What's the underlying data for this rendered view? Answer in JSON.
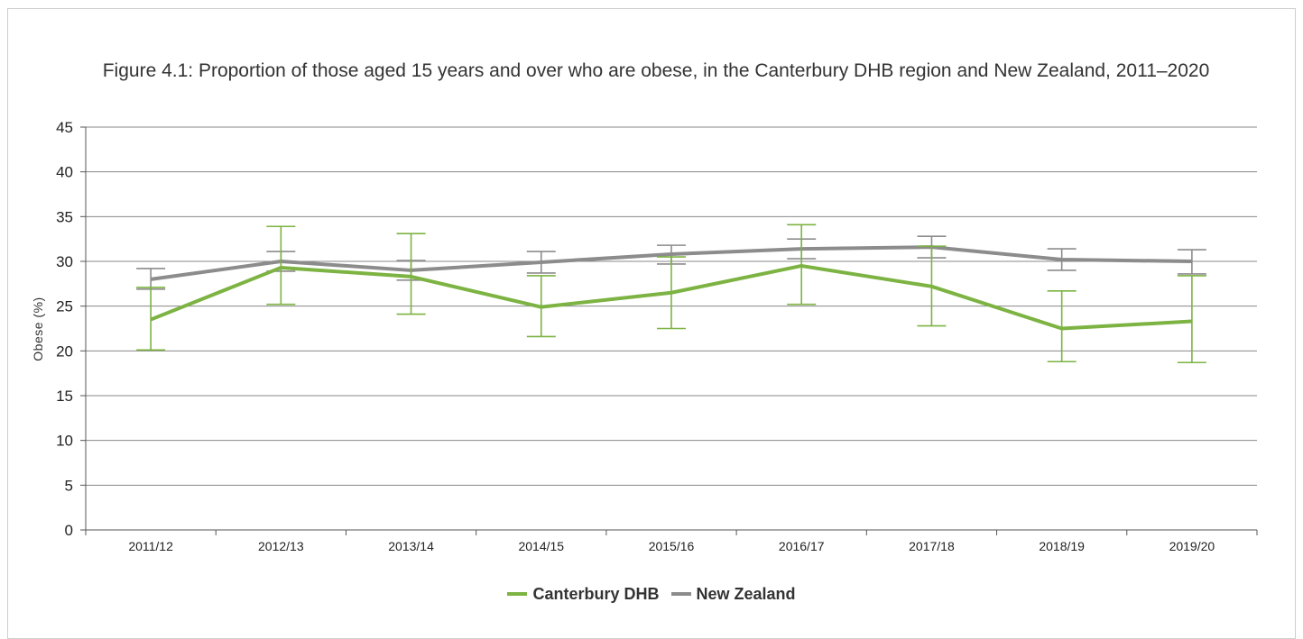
{
  "chart_data": {
    "type": "line",
    "title": "Figure 4.1: Proportion of those aged 15 years and over who are obese, in the Canterbury DHB region and New Zealand, 2011–2020",
    "ylabel": "Obese (%)",
    "xlabel": "",
    "ylim": [
      0,
      45
    ],
    "yticks": [
      0,
      5,
      10,
      15,
      20,
      25,
      30,
      35,
      40,
      45
    ],
    "grid": true,
    "legend_position": "bottom",
    "categories": [
      "2011/12",
      "2012/13",
      "2013/14",
      "2014/15",
      "2015/16",
      "2016/17",
      "2017/18",
      "2018/19",
      "2019/20"
    ],
    "series": [
      {
        "name": "Canterbury DHB",
        "color": "#7cb342",
        "values": [
          23.5,
          29.3,
          28.3,
          24.9,
          26.5,
          29.5,
          27.2,
          22.5,
          23.3
        ],
        "ci_low": [
          20.1,
          25.2,
          24.1,
          21.6,
          22.5,
          25.2,
          22.8,
          18.8,
          18.7
        ],
        "ci_high": [
          27.1,
          33.9,
          33.1,
          28.4,
          30.5,
          34.1,
          31.7,
          26.7,
          28.4
        ]
      },
      {
        "name": "New Zealand",
        "color": "#8c8c8c",
        "values": [
          28.0,
          30.0,
          29.0,
          29.9,
          30.8,
          31.4,
          31.6,
          30.2,
          30.0
        ],
        "ci_low": [
          26.9,
          28.9,
          27.9,
          28.7,
          29.7,
          30.3,
          30.4,
          29.0,
          28.6
        ],
        "ci_high": [
          29.2,
          31.1,
          30.1,
          31.1,
          31.8,
          32.5,
          32.8,
          31.4,
          31.3
        ]
      }
    ]
  }
}
